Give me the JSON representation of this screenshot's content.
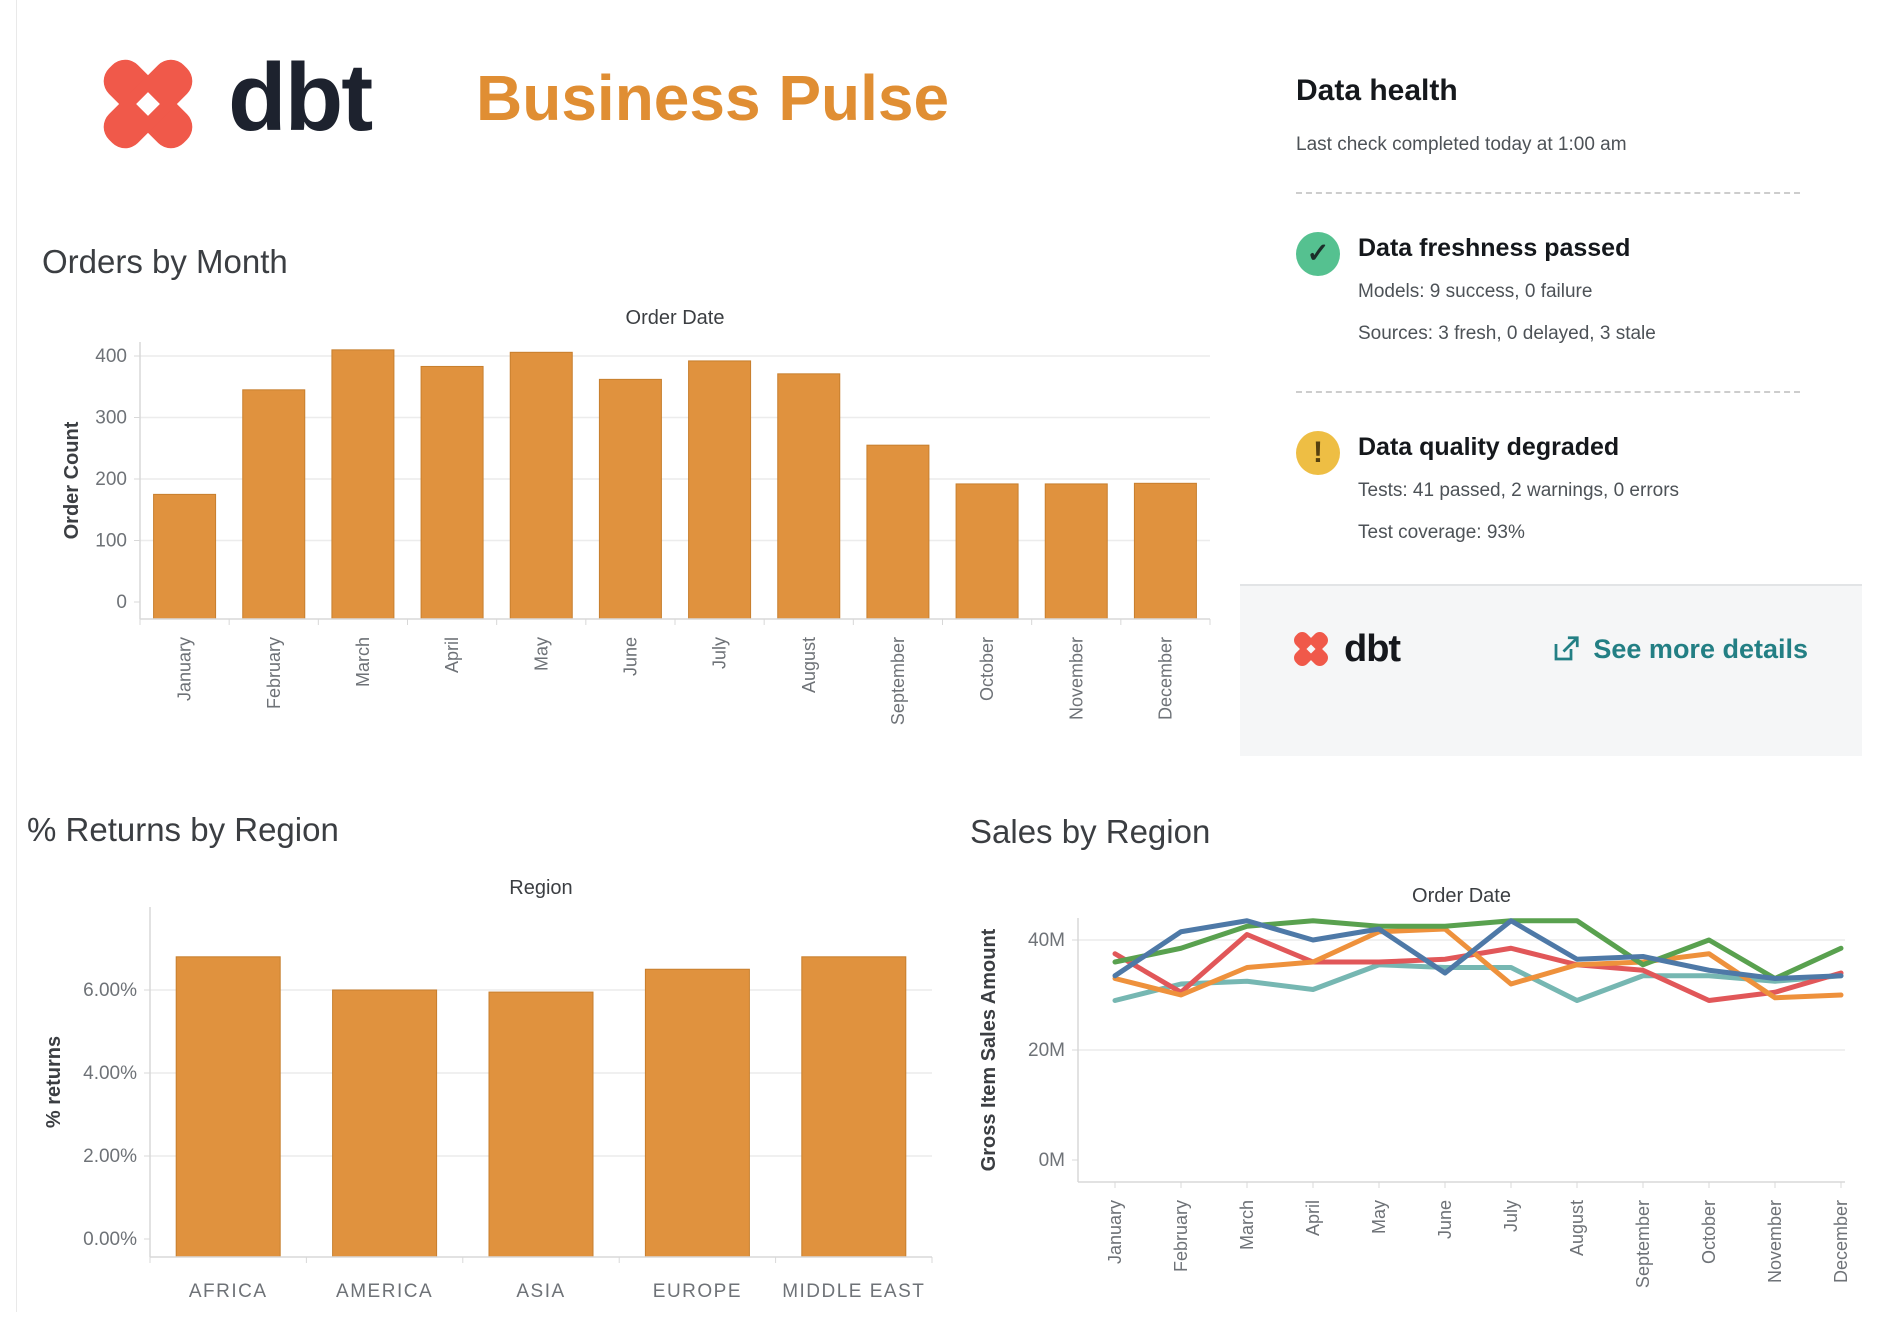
{
  "header": {
    "logo_text": "dbt",
    "title": "Business Pulse"
  },
  "colors": {
    "bar_orange": "#e0923e",
    "bar_stroke": "#c77f2e",
    "title_orange": "#e08e33",
    "dbt_coral": "#f0594a",
    "status_green": "#55c190",
    "status_yellow": "#eebe44",
    "link_teal": "#237f84"
  },
  "data_health": {
    "title": "Data health",
    "subtitle": "Last check completed today at 1:00 am",
    "items": [
      {
        "icon": "check",
        "icon_color": "#55c190",
        "title": "Data freshness passed",
        "lines": [
          "Models: 9 success, 0 failure",
          "Sources: 3 fresh, 0 delayed, 3 stale"
        ]
      },
      {
        "icon": "exclamation",
        "icon_color": "#eebe44",
        "title": "Data quality degraded",
        "lines": [
          "Tests: 41 passed, 2 warnings, 0 errors",
          "Test coverage: 93%"
        ]
      }
    ],
    "footer": {
      "logo_text": "dbt",
      "link_label": "See more details"
    }
  },
  "chart_data": [
    {
      "id": "orders_by_month",
      "type": "bar",
      "title": "Orders by Month",
      "axis_title": "Order Date",
      "ylabel": "Order Count",
      "categories": [
        "January",
        "February",
        "March",
        "April",
        "May",
        "June",
        "July",
        "August",
        "September",
        "October",
        "November",
        "December"
      ],
      "values": [
        175,
        345,
        410,
        383,
        406,
        362,
        392,
        371,
        255,
        192,
        192,
        193
      ],
      "yticks": [
        "0",
        "100",
        "200",
        "300",
        "400"
      ],
      "ytick_values": [
        0,
        100,
        200,
        300,
        400
      ],
      "ylim": [
        0,
        430
      ],
      "grid": true,
      "bar_color": "#e0923e"
    },
    {
      "id": "returns_by_region",
      "type": "bar",
      "title": "% Returns by Region",
      "axis_title": "Region",
      "ylabel": "% returns",
      "categories": [
        "AFRICA",
        "AMERICA",
        "ASIA",
        "EUROPE",
        "MIDDLE EAST"
      ],
      "values": [
        6.8,
        6.0,
        5.95,
        6.5,
        6.8
      ],
      "yticks": [
        "0.00%",
        "2.00%",
        "4.00%",
        "6.00%"
      ],
      "ytick_values": [
        0,
        2,
        4,
        6
      ],
      "ylim": [
        0,
        7.6
      ],
      "grid": true,
      "bar_color": "#e0923e"
    },
    {
      "id": "sales_by_region",
      "type": "line",
      "title": "Sales by Region",
      "axis_title": "Order Date",
      "ylabel": "Gross Item Sales Amount",
      "categories": [
        "January",
        "February",
        "March",
        "April",
        "May",
        "June",
        "July",
        "August",
        "September",
        "October",
        "November",
        "December"
      ],
      "yticks": [
        "0M",
        "20M",
        "40M"
      ],
      "ytick_values": [
        0,
        20,
        40
      ],
      "ylim": [
        0,
        48
      ],
      "grid": true,
      "legend": "none",
      "series": [
        {
          "name": "teal",
          "color": "#76b7b2",
          "values": [
            29,
            32,
            32.5,
            31,
            35.5,
            35,
            35,
            29,
            33.5,
            33.5,
            32.5,
            33.5
          ]
        },
        {
          "name": "red",
          "color": "#e15759",
          "values": [
            37.5,
            30.5,
            41,
            36,
            36,
            36.5,
            38.5,
            35.5,
            34.5,
            29,
            30.5,
            34
          ]
        },
        {
          "name": "orange",
          "color": "#ee913c",
          "values": [
            33,
            30,
            35,
            36,
            41.5,
            42,
            32,
            35.5,
            36,
            37.5,
            29.5,
            30
          ]
        },
        {
          "name": "green",
          "color": "#59a14f",
          "values": [
            36,
            38.5,
            42.5,
            43.5,
            42.5,
            42.5,
            43.5,
            43.5,
            35.5,
            40,
            33,
            38.5
          ]
        },
        {
          "name": "blue",
          "color": "#4e79a7",
          "values": [
            33.5,
            41.5,
            43.5,
            40,
            42,
            34,
            43.5,
            36.5,
            37,
            34.5,
            33,
            33.5
          ]
        }
      ]
    }
  ]
}
